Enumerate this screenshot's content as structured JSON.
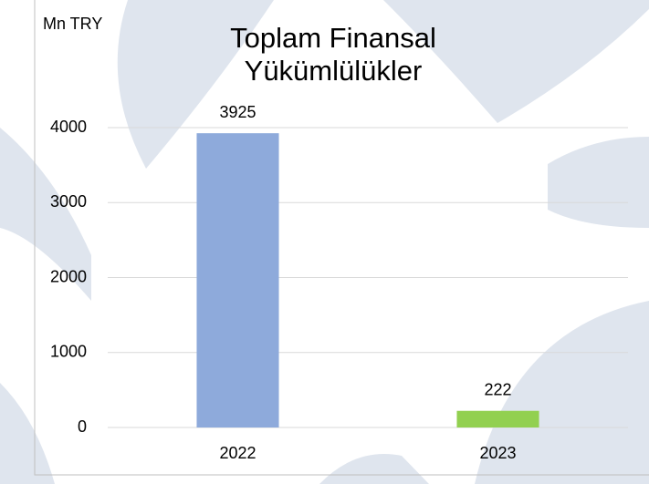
{
  "chart_data": {
    "type": "bar",
    "title": "Toplam Finansal Yükümlülükler",
    "y_axis_label": "Mn TRY",
    "categories": [
      "2022",
      "2023"
    ],
    "values": [
      3925,
      222
    ],
    "colors": [
      "#8eaadb",
      "#92d050"
    ],
    "ylim": [
      0,
      4000
    ],
    "yticks": [
      0,
      1000,
      2000,
      3000,
      4000
    ],
    "grid": true
  }
}
